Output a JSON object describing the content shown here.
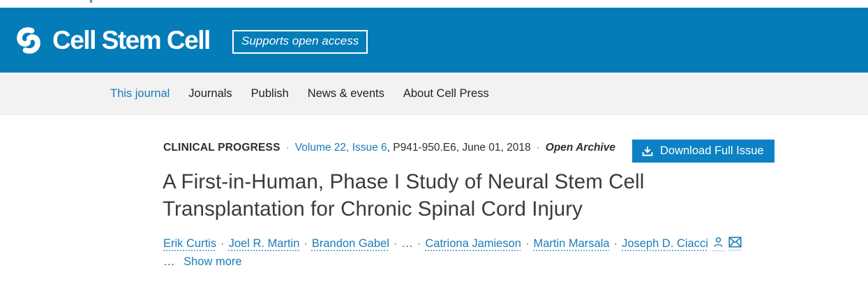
{
  "colors": {
    "header_bg": "#047cb8",
    "nav_bg": "#f2f2f2",
    "button_bg": "#0c82c4",
    "link_blue": "#1a7cb8",
    "text_dark": "#2e2e2e"
  },
  "header": {
    "brand": "Cell Stem Cell",
    "badge": "Supports open access",
    "logo_icon": "cell-press-swirl-icon"
  },
  "nav": {
    "items": [
      {
        "label": "This journal",
        "active": true
      },
      {
        "label": "Journals",
        "active": false
      },
      {
        "label": "Publish",
        "active": false
      },
      {
        "label": "News & events",
        "active": false
      },
      {
        "label": "About Cell Press",
        "active": false
      }
    ]
  },
  "article": {
    "section_label": "CLINICAL PROGRESS",
    "separator": "·",
    "issue_link": "Volume 22, Issue 6",
    "issue_rest": ", P941-950.E6, June 01, 2018",
    "access_label": "Open Archive",
    "download_button": "Download Full Issue",
    "download_icon": "download-icon",
    "title": "A First-in-Human, Phase I Study of Neural Stem Cell Transplantation for Chronic Spinal Cord Injury",
    "authors": [
      "Erik Curtis",
      "Joel R. Martin",
      "Brandon Gabel",
      "…",
      "Catriona Jamieson",
      "Martin Marsala",
      "Joseph D. Ciacci"
    ],
    "author_icons": [
      "person-icon",
      "envelope-icon"
    ],
    "ellipsis": "…",
    "show_more": "Show more"
  }
}
